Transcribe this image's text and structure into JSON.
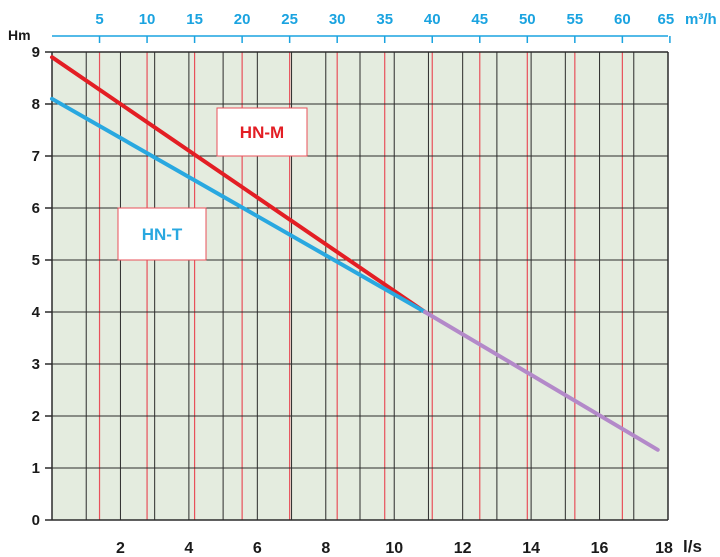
{
  "chart_data": {
    "type": "line",
    "ylabel": "Hm",
    "xlabel": "l/s",
    "x2label": "m³/h",
    "xlim": [
      0,
      18
    ],
    "ylim": [
      0,
      9
    ],
    "x_ticks": [
      2,
      4,
      6,
      8,
      10,
      12,
      14,
      16,
      18
    ],
    "y_ticks": [
      0,
      1,
      2,
      3,
      4,
      5,
      6,
      7,
      8,
      9
    ],
    "x2_ticks": [
      5,
      10,
      15,
      20,
      25,
      30,
      35,
      40,
      45,
      50,
      55,
      60,
      65
    ],
    "grid": true,
    "series": [
      {
        "name": "HN-M",
        "color": "#e31e24",
        "x": [
          0,
          10.9
        ],
        "y": [
          8.9,
          4.0
        ]
      },
      {
        "name": "HN-T",
        "color": "#29a8e0",
        "x": [
          0,
          10.9
        ],
        "y": [
          8.1,
          4.0
        ]
      },
      {
        "name": "",
        "color": "#b389c9",
        "x": [
          10.9,
          17.7
        ],
        "y": [
          4.0,
          1.35
        ]
      }
    ]
  }
}
